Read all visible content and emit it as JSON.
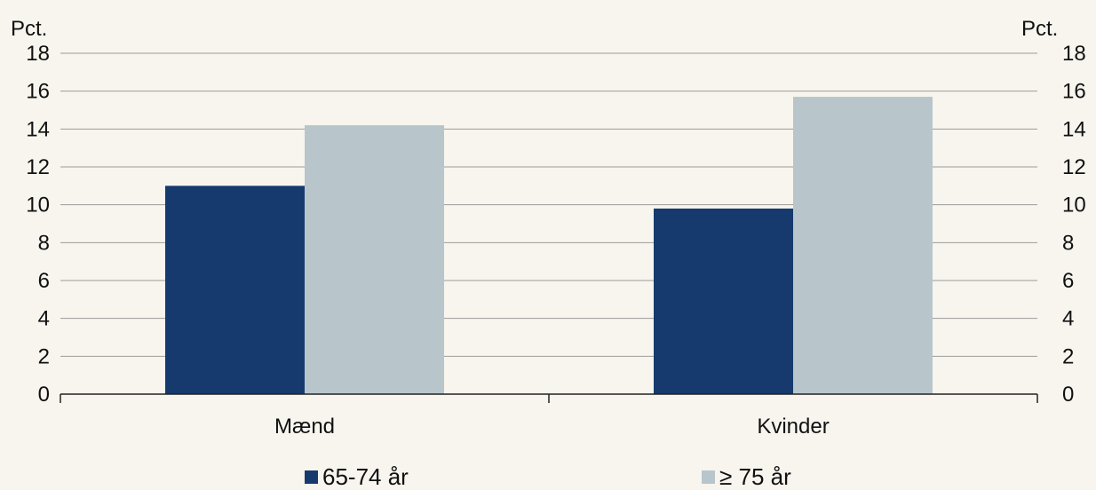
{
  "chart_data": {
    "type": "bar",
    "categories": [
      "Mænd",
      "Kvinder"
    ],
    "series": [
      {
        "name": "65-74 år",
        "values": [
          11.0,
          9.8
        ],
        "color": "#173a6e"
      },
      {
        "name": "≥ 75 år",
        "values": [
          14.2,
          15.7
        ],
        "color": "#b8c6cc"
      }
    ],
    "ylabel_left": "Pct.",
    "ylabel_right": "Pct.",
    "ylim": [
      0,
      18
    ],
    "yticks": [
      0,
      2,
      4,
      6,
      8,
      10,
      12,
      14,
      16,
      18
    ],
    "grid": true,
    "legend_position": "bottom",
    "background": "#f7f5ee",
    "gridline_color": "#9a9a9a",
    "axis_color": "#222222"
  }
}
